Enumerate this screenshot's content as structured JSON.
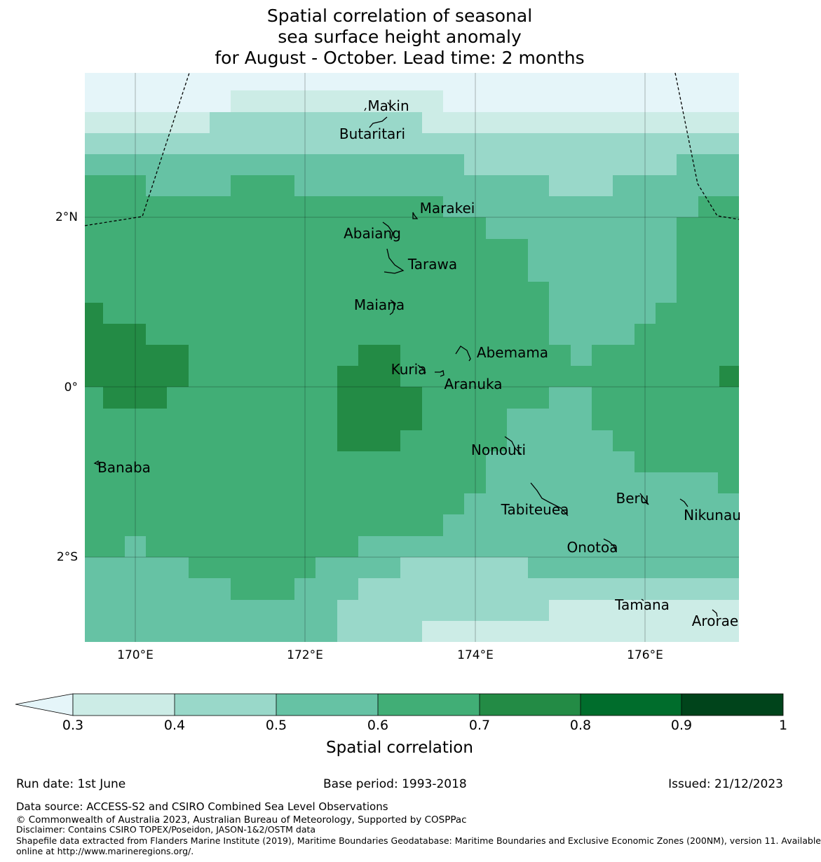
{
  "title": {
    "line1": "Spatial correlation of seasonal",
    "line2": "sea surface height anomaly",
    "line3": "for August - October. Lead time: 2 months"
  },
  "map": {
    "lat_ticks": [
      "2°N",
      "0°",
      "2°S"
    ],
    "lon_ticks": [
      "170°E",
      "172°E",
      "174°E",
      "176°E"
    ],
    "islands": [
      "Makin",
      "Butaritari",
      "Marakei",
      "Abaiang",
      "Tarawa",
      "Maiana",
      "Abemama",
      "Kuria",
      "Aranuka",
      "Banaba",
      "Nonouti",
      "Beru",
      "Tabiteuea",
      "Nikunau",
      "Onotoa",
      "Tamana",
      "Arorae"
    ],
    "colors": {
      "below_0.3": "#e5f5f9",
      "0.3-0.4": "#ccece6",
      "0.4-0.5": "#99d8c9",
      "0.5-0.6": "#66c2a4",
      "0.6-0.7": "#41ae76",
      "0.7-0.8": "#238b45",
      "0.8-0.9": "#006d2c",
      "0.9-1": "#00441b"
    }
  },
  "colorbar": {
    "ticks": [
      "0.3",
      "0.4",
      "0.5",
      "0.6",
      "0.7",
      "0.8",
      "0.9",
      "1"
    ],
    "label": "Spatial correlation"
  },
  "footer": {
    "run_date": "Run date: 1st June",
    "base_period": "Base period: 1993-2018",
    "issued": "Issued: 21/12/2023",
    "data_source": "Data source: ACCESS-S2 and CSIRO Combined Sea Level Observations",
    "copyright": "© Commonwealth of Australia 2023, Australian Bureau of Meteorology, Supported by COSPPac",
    "disclaimer": "Disclaimer: Contains CSIRO TOPEX/Poseidon, JASON-1&2/OSTM data",
    "shapefile1": "Shapefile data extracted from Flanders Marine Institute (2019), Maritime Boundaries Geodatabase: Maritime Boundaries and Exclusive Economic Zones (200NM), version 11. Available",
    "shapefile2": "online at http://www.marineregions.org/."
  }
}
